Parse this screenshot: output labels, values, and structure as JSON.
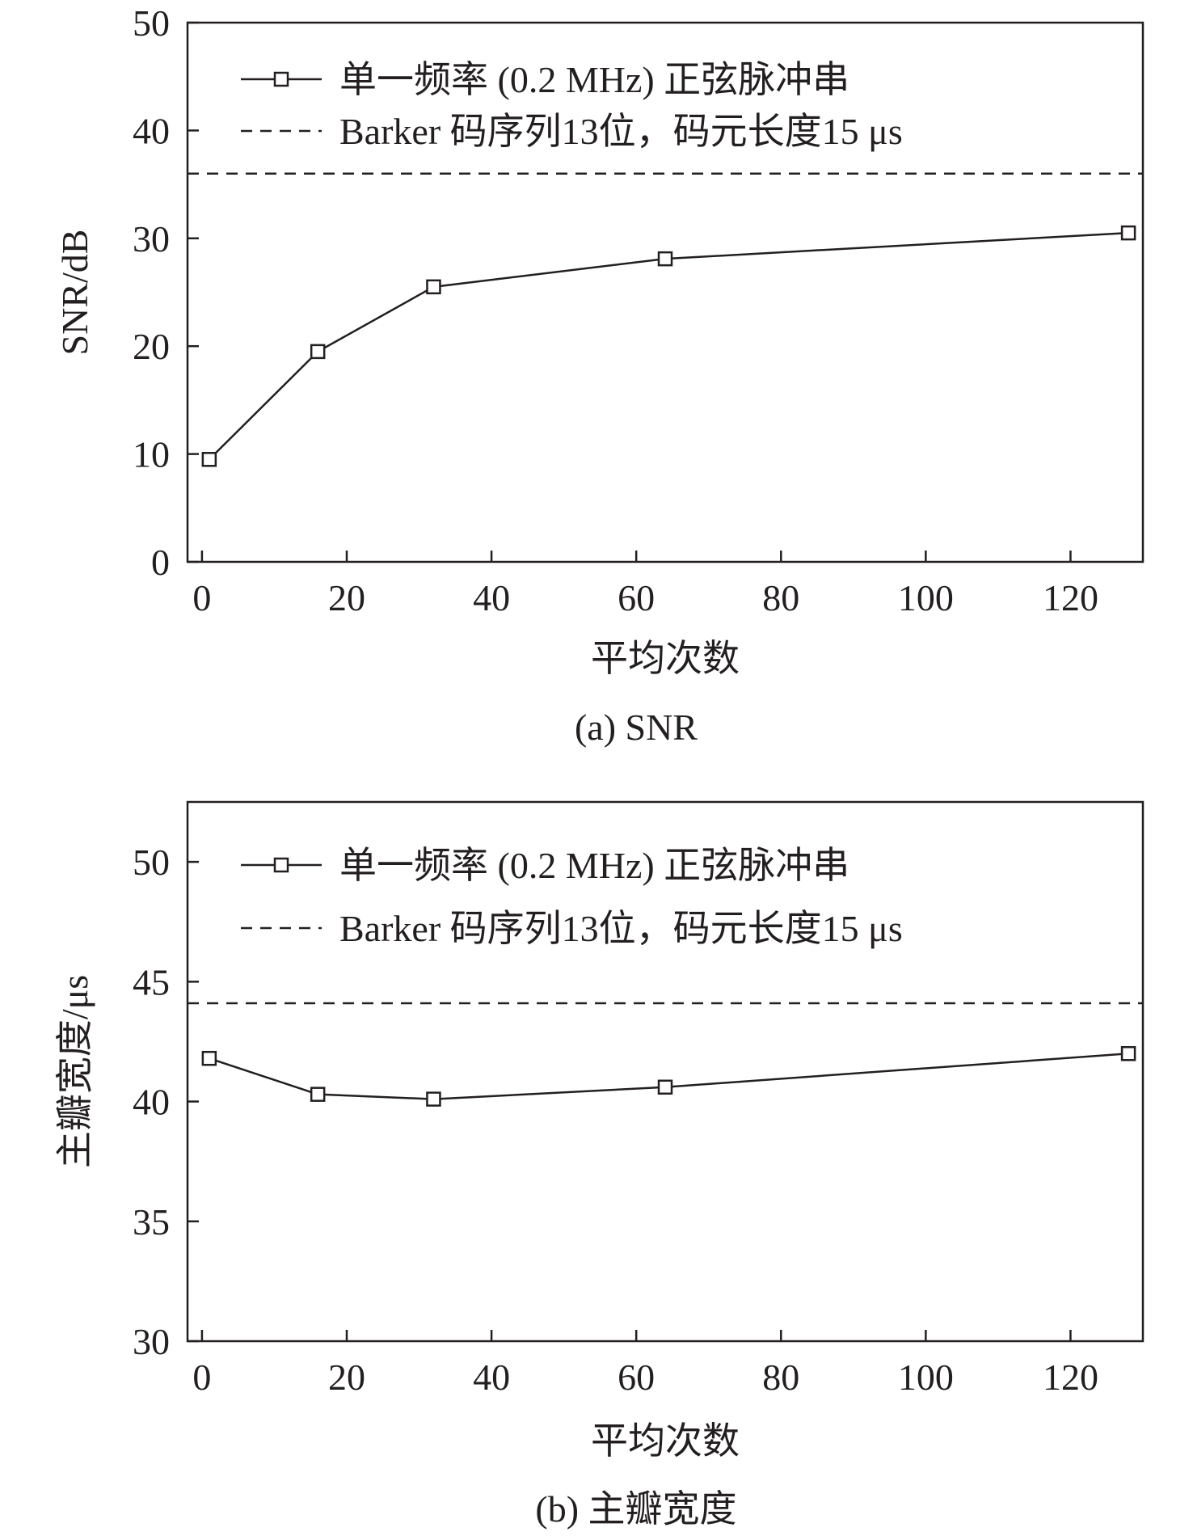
{
  "colors": {
    "ink": "#231f20",
    "background": "#ffffff"
  },
  "chart_data": [
    {
      "id": "a",
      "type": "line",
      "caption": "(a) SNR",
      "xlabel": "平均次数",
      "ylabel": "SNR/dB",
      "xlim": [
        -2,
        130
      ],
      "ylim": [
        0,
        50
      ],
      "xticks": [
        0,
        20,
        40,
        60,
        80,
        100,
        120
      ],
      "yticks": [
        0,
        10,
        20,
        30,
        40,
        50
      ],
      "grid": false,
      "legend_position": "top-left",
      "series": [
        {
          "name": "单一频率 (0.2 MHz) 正弦脉冲串",
          "style": "solid-square-markers",
          "x": [
            1,
            16,
            32,
            64,
            128
          ],
          "y": [
            9.5,
            19.5,
            25.5,
            28.1,
            30.5
          ]
        },
        {
          "name": "Barker 码序列13位，码元长度15 μs",
          "style": "dashed-constant",
          "x": [
            -2,
            130
          ],
          "y": [
            36,
            36
          ]
        }
      ]
    },
    {
      "id": "b",
      "type": "line",
      "caption": "(b) 主瓣宽度",
      "xlabel": "平均次数",
      "ylabel": "主瓣宽度/μs",
      "xlim": [
        -2,
        130
      ],
      "ylim": [
        30,
        52.5
      ],
      "xticks": [
        0,
        20,
        40,
        60,
        80,
        100,
        120
      ],
      "yticks": [
        30,
        35,
        40,
        45,
        50
      ],
      "grid": false,
      "legend_position": "top-left",
      "series": [
        {
          "name": "单一频率 (0.2 MHz) 正弦脉冲串",
          "style": "solid-square-markers",
          "x": [
            1,
            16,
            32,
            64,
            128
          ],
          "y": [
            41.8,
            40.3,
            40.1,
            40.6,
            42.0
          ]
        },
        {
          "name": "Barker 码序列13位，码元长度15 μs",
          "style": "dashed-constant",
          "x": [
            -2,
            130
          ],
          "y": [
            44.1,
            44.1
          ]
        }
      ]
    }
  ]
}
